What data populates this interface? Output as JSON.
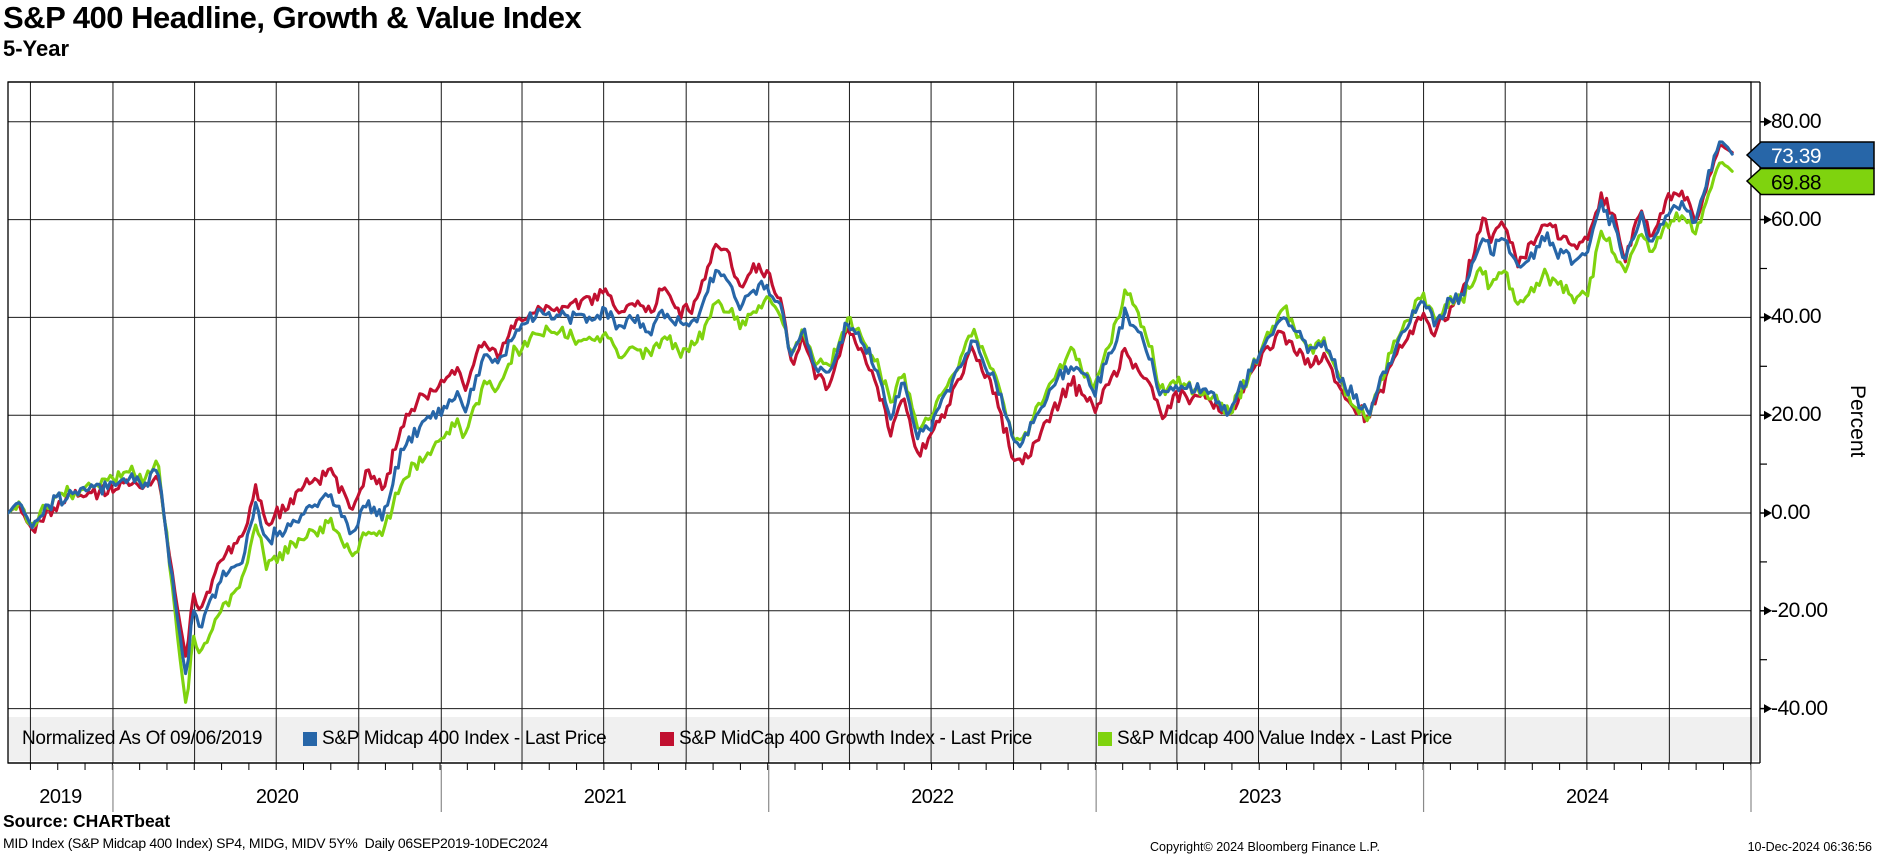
{
  "title": "S&P 400 Headline, Growth & Value Index",
  "subtitle": "5-Year",
  "y_axis": {
    "unit_label": "Percent",
    "major_ticks": [
      {
        "label": "80.00",
        "value": 80
      },
      {
        "label": "60.00",
        "value": 60
      },
      {
        "label": "40.00",
        "value": 40
      },
      {
        "label": "20.00",
        "value": 20
      },
      {
        "label": "0.00",
        "value": 0
      },
      {
        "label": "-20.00",
        "value": -20
      },
      {
        "label": "-40.00",
        "value": -40
      }
    ],
    "minor_tick_values": [
      70,
      50,
      30,
      10,
      -10,
      -30
    ]
  },
  "x_axis": {
    "years": [
      {
        "label": "2019",
        "start_day": 0,
        "end_day": 117
      },
      {
        "label": "2020",
        "start_day": 117,
        "end_day": 483
      },
      {
        "label": "2021",
        "start_day": 483,
        "end_day": 848
      },
      {
        "label": "2022",
        "start_day": 848,
        "end_day": 1213
      },
      {
        "label": "2023",
        "start_day": 1213,
        "end_day": 1578
      },
      {
        "label": "2024",
        "start_day": 1578,
        "end_day": 1943
      }
    ]
  },
  "legend": {
    "normalized_label": "Normalized As Of 09/06/2019",
    "items": [
      {
        "label": "S&P Midcap 400 Index - Last Price",
        "color": "#2766a8"
      },
      {
        "label": "S&P MidCap 400 Growth Index - Last Price",
        "color": "#c11030"
      },
      {
        "label": "S&P Midcap 400 Value Index - Last Price",
        "color": "#7fd30e"
      }
    ]
  },
  "tags": [
    {
      "value": "73.39",
      "series": "S&P Midcap 400 Index",
      "bg": "#2766a8",
      "text_color": "#ffffff"
    },
    {
      "value": "69.88",
      "series": "S&P Midcap 400 Value Index",
      "bg": "#7fd30e",
      "text_color": "#000000"
    }
  ],
  "footer": {
    "source": "Source: CHARTbeat",
    "meta": "MID Index (S&P Midcap 400 Index) SP4, MIDG, MIDV 5Y%  Daily 06SEP2019-10DEC2024",
    "copyright": "Copyright© 2024 Bloomberg Finance L.P.",
    "timestamp": "10-Dec-2024 06:36:56"
  },
  "chart_data": {
    "type": "line",
    "title": "S&P 400 Headline, Growth & Value Index (5-Year, % change)",
    "x_unit": "days since 2019-09-06 (normalization date 09/06/2019)",
    "date_range": "06SEP2019-10DEC2024",
    "ylabel": "Percent",
    "ylim": [
      -51,
      88
    ],
    "grid": "horizontal every 20, vertical quarterly",
    "legend_position": "bottom strip",
    "days": [
      0,
      12,
      26,
      40,
      56,
      87,
      117,
      140,
      150,
      167,
      185,
      199,
      206,
      213,
      240,
      262,
      276,
      288,
      302,
      330,
      360,
      383,
      400,
      417,
      424,
      440,
      460,
      482,
      500,
      510,
      530,
      545,
      562,
      578,
      592,
      610,
      630,
      650,
      667,
      682,
      700,
      715,
      731,
      750,
      766,
      790,
      802,
      816,
      831,
      846,
      861,
      874,
      886,
      901,
      916,
      936,
      956,
      976,
      984,
      998,
      1014,
      1031,
      1060,
      1075,
      1101,
      1120,
      1131,
      1140,
      1161,
      1186,
      1211,
      1241,
      1245,
      1271,
      1286,
      1301,
      1331,
      1346,
      1361,
      1391,
      1421,
      1451,
      1466,
      1491,
      1516,
      1546,
      1576,
      1590,
      1606,
      1621,
      1645,
      1653,
      1666,
      1684,
      1701,
      1714,
      1731,
      1746,
      1761,
      1776,
      1791,
      1801,
      1821,
      1831,
      1851,
      1866,
      1881,
      1901,
      1909,
      1916,
      1922
    ],
    "series": [
      {
        "name": "S&P Midcap 400 Index - Last Price",
        "color": "#2766a8",
        "last_value": 73.39,
        "values": [
          0,
          2.5,
          -3,
          0,
          3,
          4.5,
          6,
          8,
          5.5,
          9.5,
          -16,
          -34,
          -19,
          -23,
          -13,
          -9,
          2,
          -5.5,
          -4,
          0,
          3,
          -4,
          2,
          -1,
          3,
          13,
          18,
          21,
          24,
          21,
          32,
          30,
          36,
          39,
          41,
          40,
          40,
          40,
          41,
          38,
          40,
          37,
          41,
          38,
          39,
          50,
          48,
          42,
          46,
          46,
          43,
          32,
          37,
          30,
          29,
          39,
          34,
          25,
          20,
          27,
          15,
          19,
          30,
          36,
          27,
          15,
          14,
          17,
          25,
          31,
          25,
          38,
          42,
          33,
          24,
          26,
          25,
          23,
          21,
          31,
          41,
          33,
          35,
          26,
          20,
          34,
          44,
          39,
          43,
          45,
          57,
          53,
          57,
          50,
          53,
          57,
          53,
          52,
          53,
          63,
          59,
          51,
          61,
          55,
          62,
          64,
          60,
          72,
          76.5,
          75,
          73.39
        ]
      },
      {
        "name": "S&P MidCap 400 Growth Index - Last Price",
        "color": "#c11030",
        "last_value": 73.7,
        "values": [
          0,
          2,
          -3.5,
          -1,
          2,
          4,
          5,
          7.5,
          4.5,
          8.5,
          -15,
          -30.5,
          -16,
          -20,
          -9,
          -5,
          6,
          -2,
          0,
          5,
          9,
          1,
          8,
          5,
          8,
          18,
          23,
          27,
          30,
          26,
          36,
          32,
          38,
          40,
          42,
          41,
          43,
          44,
          45,
          41,
          44,
          41,
          46,
          41,
          43,
          55,
          54,
          46,
          50,
          49,
          44,
          30,
          36,
          28,
          26,
          38,
          32,
          22,
          17,
          24,
          12,
          16,
          27,
          34,
          24,
          11,
          10,
          13,
          20,
          27,
          21,
          31,
          33,
          27,
          20,
          24,
          24,
          22,
          20,
          30,
          37,
          30,
          32,
          24,
          19,
          32,
          41,
          37,
          41,
          45,
          61,
          56,
          60,
          51,
          55,
          60,
          56,
          55,
          56,
          65,
          60,
          52,
          62,
          56,
          64,
          66,
          60,
          71,
          75.5,
          74.5,
          73.7
        ]
      },
      {
        "name": "S&P Midcap 400 Value Index - Last Price",
        "color": "#7fd30e",
        "last_value": 69.88,
        "values": [
          0,
          2,
          -2.5,
          0.5,
          3.5,
          5,
          7,
          8.5,
          6.5,
          10.5,
          -18,
          -41,
          -24,
          -29,
          -19,
          -14,
          -2,
          -10,
          -9,
          -5,
          -2,
          -9,
          -3,
          -5,
          -1,
          7,
          11,
          15,
          18,
          16,
          26,
          25,
          32,
          35,
          37,
          37,
          36,
          35,
          36,
          32,
          34,
          32,
          36,
          33,
          34,
          43,
          42,
          38,
          42,
          43,
          41,
          33,
          37,
          31,
          30,
          40,
          36,
          27,
          22,
          29,
          17,
          21,
          31,
          37,
          28,
          16,
          15,
          18,
          27,
          33,
          26,
          42,
          47,
          36,
          25,
          27,
          25,
          23,
          20,
          31,
          42,
          33,
          35,
          25,
          18.5,
          35,
          45,
          40,
          43,
          44,
          50,
          46,
          50,
          42,
          45,
          49,
          46,
          44,
          45,
          57,
          54,
          49,
          58,
          53,
          60,
          61,
          57,
          68,
          72,
          71,
          69.88
        ]
      }
    ]
  }
}
